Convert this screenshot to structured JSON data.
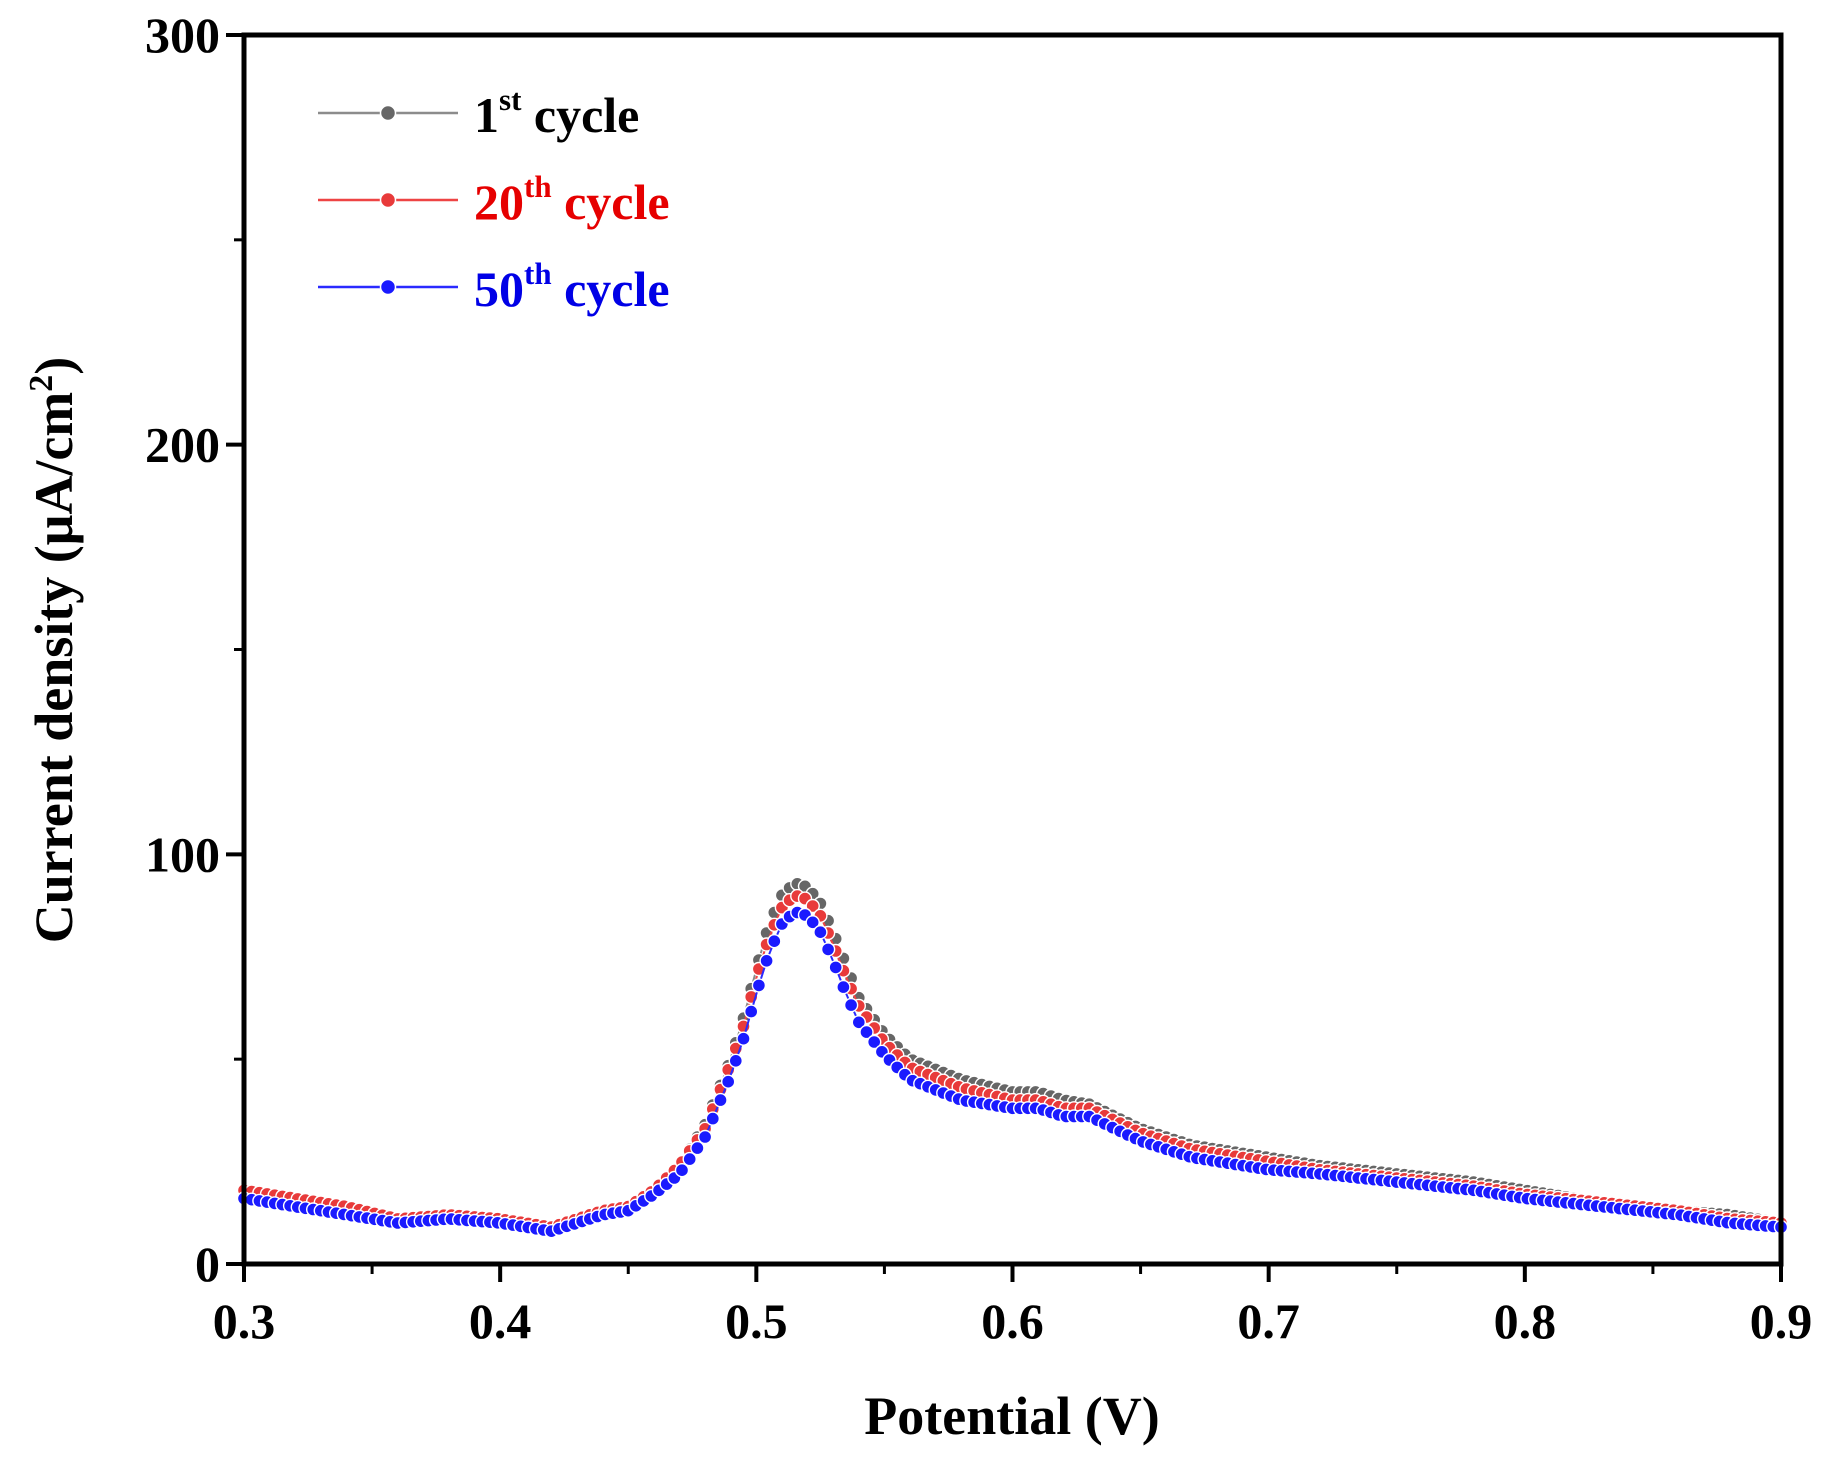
{
  "chart_data": {
    "type": "line",
    "title": "",
    "xlabel": "Potential (V)",
    "ylabel": {
      "main": "Current density (μA/cm",
      "sup": "2",
      "close": ")"
    },
    "xlim": [
      0.3,
      0.9
    ],
    "ylim": [
      0,
      300
    ],
    "xticks": [
      "0.3",
      "0.4",
      "0.5",
      "0.6",
      "0.7",
      "0.8",
      "0.9"
    ],
    "yticks": [
      "0",
      "100",
      "200",
      "300"
    ],
    "grid": false,
    "legend_position": "top-left",
    "series": [
      {
        "name": "1st cycle",
        "label": {
          "num": "1",
          "sup": "st",
          "rest": " cycle"
        },
        "color": "#666666",
        "line_color": "#8c8c8c",
        "text_color": "#000000",
        "points": [
          [
            0.3,
            18
          ],
          [
            0.32,
            16
          ],
          [
            0.34,
            14
          ],
          [
            0.36,
            11
          ],
          [
            0.38,
            12
          ],
          [
            0.4,
            11
          ],
          [
            0.41,
            10
          ],
          [
            0.42,
            9
          ],
          [
            0.43,
            11
          ],
          [
            0.44,
            13
          ],
          [
            0.45,
            14
          ],
          [
            0.46,
            18
          ],
          [
            0.47,
            24
          ],
          [
            0.48,
            34
          ],
          [
            0.49,
            50
          ],
          [
            0.495,
            60
          ],
          [
            0.5,
            72
          ],
          [
            0.505,
            83
          ],
          [
            0.51,
            90
          ],
          [
            0.515,
            93
          ],
          [
            0.52,
            92
          ],
          [
            0.525,
            88
          ],
          [
            0.53,
            81
          ],
          [
            0.535,
            73
          ],
          [
            0.54,
            65
          ],
          [
            0.55,
            56
          ],
          [
            0.56,
            50
          ],
          [
            0.58,
            45
          ],
          [
            0.6,
            42
          ],
          [
            0.61,
            42
          ],
          [
            0.62,
            40
          ],
          [
            0.63,
            39
          ],
          [
            0.65,
            33
          ],
          [
            0.67,
            29
          ],
          [
            0.7,
            26
          ],
          [
            0.72,
            24
          ],
          [
            0.75,
            22
          ],
          [
            0.78,
            20
          ],
          [
            0.8,
            18
          ],
          [
            0.83,
            15
          ],
          [
            0.86,
            13
          ],
          [
            0.88,
            12
          ],
          [
            0.9,
            10
          ]
        ]
      },
      {
        "name": "20th cycle",
        "label": {
          "num": "20",
          "sup": "th",
          "rest": " cycle"
        },
        "color": "#e83a3a",
        "line_color": "#ee4444",
        "text_color": "#e60000",
        "points": [
          [
            0.3,
            18
          ],
          [
            0.32,
            16
          ],
          [
            0.34,
            14
          ],
          [
            0.36,
            11
          ],
          [
            0.38,
            12
          ],
          [
            0.4,
            11
          ],
          [
            0.41,
            10
          ],
          [
            0.42,
            9
          ],
          [
            0.43,
            11
          ],
          [
            0.44,
            13
          ],
          [
            0.45,
            14
          ],
          [
            0.46,
            18
          ],
          [
            0.47,
            24
          ],
          [
            0.48,
            33
          ],
          [
            0.49,
            49
          ],
          [
            0.495,
            58
          ],
          [
            0.5,
            70
          ],
          [
            0.505,
            80
          ],
          [
            0.51,
            87
          ],
          [
            0.515,
            90
          ],
          [
            0.52,
            89
          ],
          [
            0.525,
            85
          ],
          [
            0.53,
            78
          ],
          [
            0.535,
            70
          ],
          [
            0.54,
            63
          ],
          [
            0.55,
            54
          ],
          [
            0.56,
            48
          ],
          [
            0.58,
            43
          ],
          [
            0.6,
            40
          ],
          [
            0.61,
            40
          ],
          [
            0.62,
            38
          ],
          [
            0.63,
            38
          ],
          [
            0.65,
            32
          ],
          [
            0.67,
            28
          ],
          [
            0.7,
            25
          ],
          [
            0.72,
            23
          ],
          [
            0.75,
            21
          ],
          [
            0.78,
            19
          ],
          [
            0.8,
            17
          ],
          [
            0.83,
            15
          ],
          [
            0.86,
            13
          ],
          [
            0.88,
            11
          ],
          [
            0.9,
            10
          ]
        ]
      },
      {
        "name": "50th cycle",
        "label": {
          "num": "50",
          "sup": "th",
          "rest": " cycle"
        },
        "color": "#1a1aff",
        "line_color": "#2a2aff",
        "text_color": "#0000e6",
        "points": [
          [
            0.3,
            16
          ],
          [
            0.32,
            14
          ],
          [
            0.34,
            12
          ],
          [
            0.36,
            10
          ],
          [
            0.38,
            11
          ],
          [
            0.4,
            10
          ],
          [
            0.41,
            9
          ],
          [
            0.42,
            8
          ],
          [
            0.43,
            10
          ],
          [
            0.44,
            12
          ],
          [
            0.45,
            13
          ],
          [
            0.46,
            17
          ],
          [
            0.47,
            22
          ],
          [
            0.48,
            31
          ],
          [
            0.49,
            46
          ],
          [
            0.495,
            55
          ],
          [
            0.5,
            66
          ],
          [
            0.505,
            76
          ],
          [
            0.51,
            83
          ],
          [
            0.515,
            86
          ],
          [
            0.52,
            85
          ],
          [
            0.525,
            81
          ],
          [
            0.53,
            74
          ],
          [
            0.535,
            66
          ],
          [
            0.54,
            59
          ],
          [
            0.55,
            51
          ],
          [
            0.56,
            45
          ],
          [
            0.58,
            40
          ],
          [
            0.6,
            38
          ],
          [
            0.61,
            38
          ],
          [
            0.62,
            36
          ],
          [
            0.63,
            36
          ],
          [
            0.65,
            30
          ],
          [
            0.67,
            26
          ],
          [
            0.7,
            23
          ],
          [
            0.72,
            22
          ],
          [
            0.75,
            20
          ],
          [
            0.78,
            18
          ],
          [
            0.8,
            16
          ],
          [
            0.83,
            14
          ],
          [
            0.86,
            12
          ],
          [
            0.88,
            10
          ],
          [
            0.9,
            9
          ]
        ]
      }
    ]
  }
}
